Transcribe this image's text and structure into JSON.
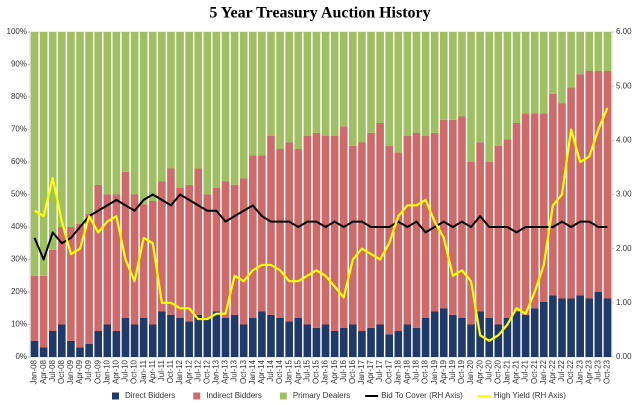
{
  "chart_data": {
    "type": "bar",
    "title": "5 Year Treasury Auction History",
    "categories": [
      "Jan-08",
      "Apr-08",
      "Jul-08",
      "Oct-08",
      "Jan-09",
      "Apr-09",
      "Jul-09",
      "Oct-09",
      "Jan-10",
      "Apr-10",
      "Jul-10",
      "Oct-10",
      "Jan-11",
      "Apr-11",
      "Jul-11",
      "Oct-11",
      "Jan-12",
      "Apr-12",
      "Jul-12",
      "Oct-12",
      "Jan-13",
      "Apr-13",
      "Jul-13",
      "Oct-13",
      "Jan-14",
      "Apr-14",
      "Jul-14",
      "Oct-14",
      "Jan-15",
      "Apr-15",
      "Jul-15",
      "Oct-15",
      "Jan-16",
      "Apr-16",
      "Jul-16",
      "Oct-16",
      "Jan-17",
      "Apr-17",
      "Jul-17",
      "Oct-17",
      "Jan-18",
      "Apr-18",
      "Jul-18",
      "Oct-18",
      "Jan-19",
      "Apr-19",
      "Jul-19",
      "Oct-19",
      "Jan-20",
      "Apr-20",
      "Jul-20",
      "Oct-20",
      "Jan-21",
      "Apr-21",
      "Jul-21",
      "Oct-21",
      "Jan-22",
      "Apr-22",
      "Jul-22",
      "Oct-22",
      "Jan-23",
      "Apr-23",
      "Jul-23",
      "Oct-23"
    ],
    "series": [
      {
        "name": "Direct Bidders",
        "type": "bar",
        "color": "#1f3a68",
        "values": [
          5,
          3,
          8,
          10,
          5,
          3,
          4,
          8,
          10,
          8,
          12,
          10,
          12,
          10,
          14,
          13,
          12,
          11,
          13,
          12,
          14,
          12,
          13,
          10,
          12,
          14,
          13,
          12,
          11,
          12,
          10,
          9,
          10,
          8,
          9,
          10,
          8,
          9,
          10,
          7,
          8,
          10,
          9,
          12,
          14,
          15,
          13,
          12,
          10,
          14,
          12,
          10,
          12,
          14,
          13,
          15,
          17,
          19,
          18,
          18,
          19,
          18,
          20,
          18
        ]
      },
      {
        "name": "Indirect Bidders",
        "type": "bar",
        "color": "#cf6a6a",
        "values": [
          20,
          22,
          25,
          30,
          35,
          38,
          40,
          45,
          40,
          42,
          45,
          40,
          35,
          38,
          40,
          45,
          40,
          42,
          45,
          38,
          38,
          42,
          40,
          45,
          50,
          48,
          55,
          52,
          55,
          52,
          58,
          60,
          58,
          60,
          62,
          55,
          58,
          60,
          62,
          58,
          55,
          58,
          60,
          56,
          55,
          58,
          60,
          62,
          50,
          52,
          48,
          55,
          55,
          58,
          62,
          60,
          58,
          62,
          60,
          65,
          68,
          70,
          68,
          70
        ]
      },
      {
        "name": "Primary Dealers",
        "type": "bar",
        "color": "#9fbf62",
        "values": [
          75,
          75,
          67,
          60,
          60,
          59,
          56,
          47,
          50,
          50,
          43,
          50,
          53,
          52,
          46,
          42,
          48,
          47,
          42,
          50,
          48,
          46,
          47,
          45,
          38,
          38,
          32,
          36,
          34,
          36,
          32,
          31,
          32,
          32,
          29,
          35,
          34,
          31,
          28,
          35,
          37,
          32,
          31,
          32,
          31,
          27,
          27,
          26,
          40,
          34,
          40,
          35,
          33,
          28,
          25,
          25,
          25,
          19,
          22,
          17,
          13,
          12,
          12,
          12
        ]
      },
      {
        "name": "Bid To Cover (RH Axis)",
        "type": "line",
        "axis": "y2",
        "color": "#000000",
        "values": [
          2.2,
          1.8,
          2.3,
          2.1,
          2.2,
          2.4,
          2.6,
          2.7,
          2.8,
          2.9,
          2.8,
          2.7,
          2.9,
          3.0,
          2.9,
          2.8,
          3.0,
          2.9,
          2.8,
          2.7,
          2.7,
          2.5,
          2.6,
          2.7,
          2.8,
          2.6,
          2.5,
          2.5,
          2.5,
          2.4,
          2.5,
          2.5,
          2.4,
          2.5,
          2.4,
          2.5,
          2.5,
          2.4,
          2.4,
          2.4,
          2.5,
          2.4,
          2.5,
          2.3,
          2.4,
          2.5,
          2.4,
          2.5,
          2.4,
          2.6,
          2.4,
          2.4,
          2.4,
          2.3,
          2.4,
          2.4,
          2.4,
          2.4,
          2.5,
          2.4,
          2.5,
          2.5,
          2.4,
          2.4
        ]
      },
      {
        "name": "High Yield (RH Axis)",
        "type": "line",
        "axis": "y2",
        "color": "#ffff00",
        "values": [
          2.7,
          2.6,
          3.3,
          2.5,
          1.9,
          2.0,
          2.6,
          2.3,
          2.5,
          2.6,
          1.8,
          1.4,
          2.2,
          2.1,
          1.0,
          1.0,
          0.9,
          0.9,
          0.7,
          0.7,
          0.8,
          0.8,
          1.5,
          1.4,
          1.6,
          1.7,
          1.7,
          1.6,
          1.4,
          1.4,
          1.5,
          1.6,
          1.5,
          1.3,
          1.1,
          1.8,
          2.0,
          1.9,
          1.8,
          2.1,
          2.6,
          2.8,
          2.8,
          2.9,
          2.5,
          2.2,
          1.5,
          1.6,
          1.4,
          0.4,
          0.3,
          0.4,
          0.6,
          0.9,
          0.8,
          1.2,
          1.7,
          2.8,
          3.0,
          4.2,
          3.6,
          3.7,
          4.2,
          4.6
        ]
      }
    ],
    "ylim": [
      0,
      100
    ],
    "yticks": [
      {
        "value": 0,
        "label": "0%"
      },
      {
        "value": 10,
        "label": "10%"
      },
      {
        "value": 20,
        "label": "20%"
      },
      {
        "value": 30,
        "label": "30%"
      },
      {
        "value": 40,
        "label": "40%"
      },
      {
        "value": 50,
        "label": "50%"
      },
      {
        "value": 60,
        "label": "60%"
      },
      {
        "value": 70,
        "label": "70%"
      },
      {
        "value": 80,
        "label": "80%"
      },
      {
        "value": 90,
        "label": "90%"
      },
      {
        "value": 100,
        "label": "100%"
      }
    ],
    "y2lim": [
      0,
      6
    ],
    "y2ticks": [
      {
        "value": 0,
        "label": "0.00"
      },
      {
        "value": 1,
        "label": "1.00"
      },
      {
        "value": 2,
        "label": "2.00"
      },
      {
        "value": 3,
        "label": "3.00"
      },
      {
        "value": 4,
        "label": "4.00"
      },
      {
        "value": 5,
        "label": "5.00"
      },
      {
        "value": 6,
        "label": "6.00"
      }
    ],
    "legend": "bottom"
  }
}
